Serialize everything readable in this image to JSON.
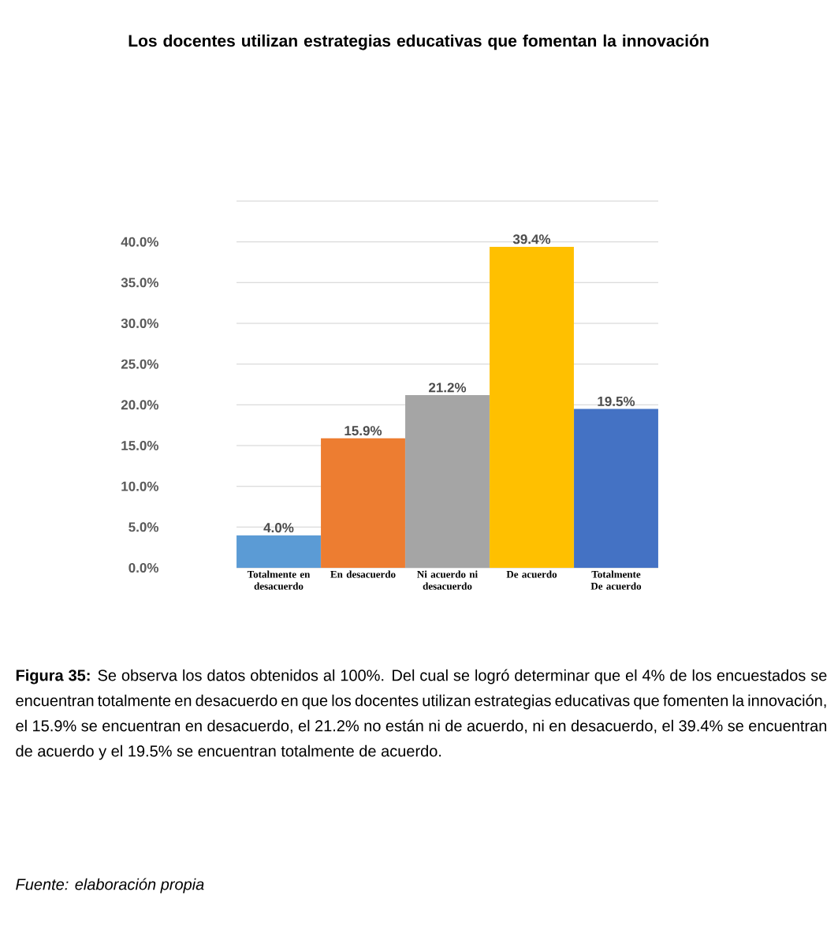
{
  "chart_data": {
    "type": "bar",
    "title": "Los docentes utilizan estrategias educativas que fomentan la innovación",
    "categories": [
      "Totalmente en desacuerdo",
      "En desacuerdo",
      "Ni acuerdo ni desacuerdo",
      "De acuerdo",
      "Totalmente De acuerdo"
    ],
    "values": [
      4.0,
      15.9,
      21.2,
      39.4,
      19.5
    ],
    "colors": [
      "#5b9bd5",
      "#ed7d31",
      "#a5a5a5",
      "#ffc000",
      "#4472c4"
    ],
    "value_labels": [
      "4.0%",
      "15.9%",
      "21.2%",
      "39.4%",
      "19.5%"
    ],
    "ylim": [
      0,
      45
    ],
    "yticks": [
      {
        "value": 0,
        "label": "0.0%"
      },
      {
        "value": 5,
        "label": "5.0%"
      },
      {
        "value": 10,
        "label": "10.0%"
      },
      {
        "value": 15,
        "label": "15.0%"
      },
      {
        "value": 20,
        "label": "20.0%"
      },
      {
        "value": 25,
        "label": "25.0%"
      },
      {
        "value": 30,
        "label": "30.0%"
      },
      {
        "value": 35,
        "label": "35.0%"
      },
      {
        "value": 40,
        "label": "40.0%"
      },
      {
        "value": 45,
        "label": null
      }
    ],
    "grid": "y",
    "annotations": [
      "**Figura 35:** Se observa los datos obtenidos al 100%. Del cual se logró determinar que el 4% de los encuestados se encuentran totalmente en desacuerdo en que los docentes utilizan estrategias educativas que fomenten la innovación, el 15.9% se encuentran en desacuerdo, el 21.2% no están ni de acuerdo, ni en desacuerdo, el 39.4% se encuentran de acuerdo y el 19.5% se encuentran totalmente de acuerdo.",
      "Fuente: elaboración propia"
    ]
  }
}
